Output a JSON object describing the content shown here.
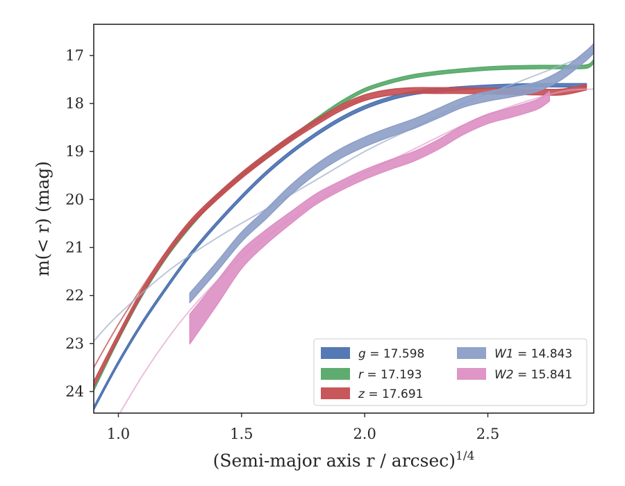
{
  "chart_data": {
    "type": "line",
    "xlabel": "(Semi-major axis r / arcsec)",
    "xlabel_exponent": "1/4",
    "ylabel": "m(< r) (mag)",
    "xlim": [
      0.9,
      2.93
    ],
    "ylim": [
      24.45,
      16.35
    ],
    "y_inverted": true,
    "x_ticks": [
      1.0,
      1.5,
      2.0,
      2.5
    ],
    "x_tick_labels": [
      "1.0",
      "1.5",
      "2.0",
      "2.5"
    ],
    "y_ticks": [
      17,
      18,
      19,
      20,
      21,
      22,
      23,
      24
    ],
    "y_tick_labels": [
      "17",
      "18",
      "19",
      "20",
      "21",
      "22",
      "23",
      "24"
    ],
    "grid": false,
    "legend_position": "lower-right",
    "legend": [
      {
        "band": "g",
        "value": "17.598",
        "color": "#4c72b0"
      },
      {
        "band": "r",
        "value": "17.193",
        "color": "#55a868"
      },
      {
        "band": "z",
        "value": "17.691",
        "color": "#c44e52"
      },
      {
        "band": "W1",
        "value": "14.843",
        "color": "#8c9ec6"
      },
      {
        "band": "W2",
        "value": "15.841",
        "color": "#dd8fc3"
      }
    ],
    "series": [
      {
        "band": "g",
        "color": "#4c72b0",
        "kind": "band",
        "x": [
          0.9,
          1.0,
          1.1,
          1.2,
          1.3,
          1.4,
          1.5,
          1.6,
          1.7,
          1.8,
          1.9,
          2.0,
          2.1,
          2.2,
          2.3,
          2.4,
          2.5,
          2.6,
          2.7,
          2.8,
          2.9
        ],
        "y": [
          24.35,
          23.4,
          22.55,
          21.8,
          21.1,
          20.5,
          19.95,
          19.45,
          19.02,
          18.65,
          18.33,
          18.08,
          17.9,
          17.78,
          17.72,
          17.68,
          17.65,
          17.63,
          17.62,
          17.62,
          17.62
        ],
        "width": 0.07
      },
      {
        "band": "r",
        "color": "#55a868",
        "kind": "band",
        "x": [
          0.9,
          1.0,
          1.1,
          1.2,
          1.3,
          1.4,
          1.5,
          1.6,
          1.7,
          1.8,
          1.9,
          2.0,
          2.1,
          2.2,
          2.3,
          2.4,
          2.5,
          2.6,
          2.7,
          2.8,
          2.9,
          2.93
        ],
        "y": [
          23.95,
          22.9,
          21.95,
          21.15,
          20.5,
          19.95,
          19.5,
          19.1,
          18.72,
          18.35,
          18.0,
          17.72,
          17.55,
          17.43,
          17.36,
          17.31,
          17.27,
          17.25,
          17.24,
          17.24,
          17.23,
          17.12
        ],
        "width": 0.07
      },
      {
        "band": "z",
        "color": "#c44e52",
        "kind": "band",
        "x": [
          0.9,
          1.0,
          1.1,
          1.2,
          1.3,
          1.4,
          1.5,
          1.6,
          1.7,
          1.8,
          1.9,
          2.0,
          2.1,
          2.2,
          2.3,
          2.4,
          2.5,
          2.6,
          2.7,
          2.8,
          2.9
        ],
        "y": [
          23.85,
          22.85,
          21.9,
          21.1,
          20.45,
          19.95,
          19.5,
          19.1,
          18.73,
          18.4,
          18.1,
          17.88,
          17.77,
          17.73,
          17.73,
          17.73,
          17.74,
          17.75,
          17.76,
          17.76,
          17.66
        ],
        "width": 0.12
      },
      {
        "band": "z",
        "color": "#c44e52",
        "kind": "thin",
        "opacity": 0.75,
        "x": [
          0.9,
          1.0,
          1.1,
          1.2,
          1.3,
          1.4,
          1.5,
          1.6,
          1.7,
          1.8,
          1.9,
          2.0
        ],
        "y": [
          23.5,
          22.6,
          21.8,
          21.05,
          20.45,
          19.95,
          19.5,
          19.1,
          18.73,
          18.4,
          18.1,
          17.88
        ]
      },
      {
        "band": "W1",
        "color": "#a5b3cc",
        "kind": "thin",
        "opacity": 0.75,
        "x": [
          0.9,
          1.0,
          1.2,
          1.4,
          1.6,
          1.8,
          2.0,
          2.2,
          2.4,
          2.6,
          2.8,
          2.93
        ],
        "y": [
          22.95,
          22.4,
          21.5,
          20.8,
          20.2,
          19.6,
          19.0,
          18.5,
          18.0,
          17.6,
          17.2,
          16.95
        ]
      },
      {
        "band": "W1",
        "color": "#8c9ec6",
        "kind": "band",
        "x": [
          1.29,
          1.4,
          1.5,
          1.6,
          1.7,
          1.8,
          1.9,
          2.0,
          2.1,
          2.2,
          2.3,
          2.4,
          2.5,
          2.6,
          2.7,
          2.8,
          2.9,
          2.93
        ],
        "y": [
          22.05,
          21.4,
          20.78,
          20.3,
          19.8,
          19.38,
          19.05,
          18.8,
          18.6,
          18.42,
          18.2,
          17.98,
          17.85,
          17.76,
          17.65,
          17.4,
          17.0,
          16.85
        ],
        "width": 0.2
      },
      {
        "band": "W2",
        "color": "#e3a4cc",
        "kind": "thin",
        "opacity": 0.7,
        "x": [
          1.0,
          1.1,
          1.2,
          1.3,
          1.4,
          1.5,
          1.6,
          1.7,
          1.8,
          1.9,
          2.0,
          2.2,
          2.4,
          2.6,
          2.8,
          2.93
        ],
        "y": [
          24.5,
          23.65,
          22.9,
          22.25,
          21.7,
          21.2,
          20.78,
          20.4,
          20.05,
          19.75,
          19.45,
          18.95,
          18.45,
          18.05,
          17.75,
          17.7
        ]
      },
      {
        "band": "W2",
        "color": "#dd8fc3",
        "kind": "band",
        "x": [
          1.29,
          1.4,
          1.5,
          1.6,
          1.7,
          1.8,
          1.9,
          2.0,
          2.1,
          2.2,
          2.3,
          2.4,
          2.5,
          2.6,
          2.7,
          2.75
        ],
        "y": [
          22.7,
          21.95,
          21.25,
          20.78,
          20.38,
          20.0,
          19.72,
          19.48,
          19.28,
          19.1,
          18.85,
          18.55,
          18.32,
          18.18,
          18.02,
          17.85
        ],
        "width": [
          0.62,
          0.5,
          0.38,
          0.3,
          0.25,
          0.22,
          0.2,
          0.2,
          0.2,
          0.2,
          0.2,
          0.2,
          0.2,
          0.2,
          0.2,
          0.2
        ]
      }
    ]
  }
}
